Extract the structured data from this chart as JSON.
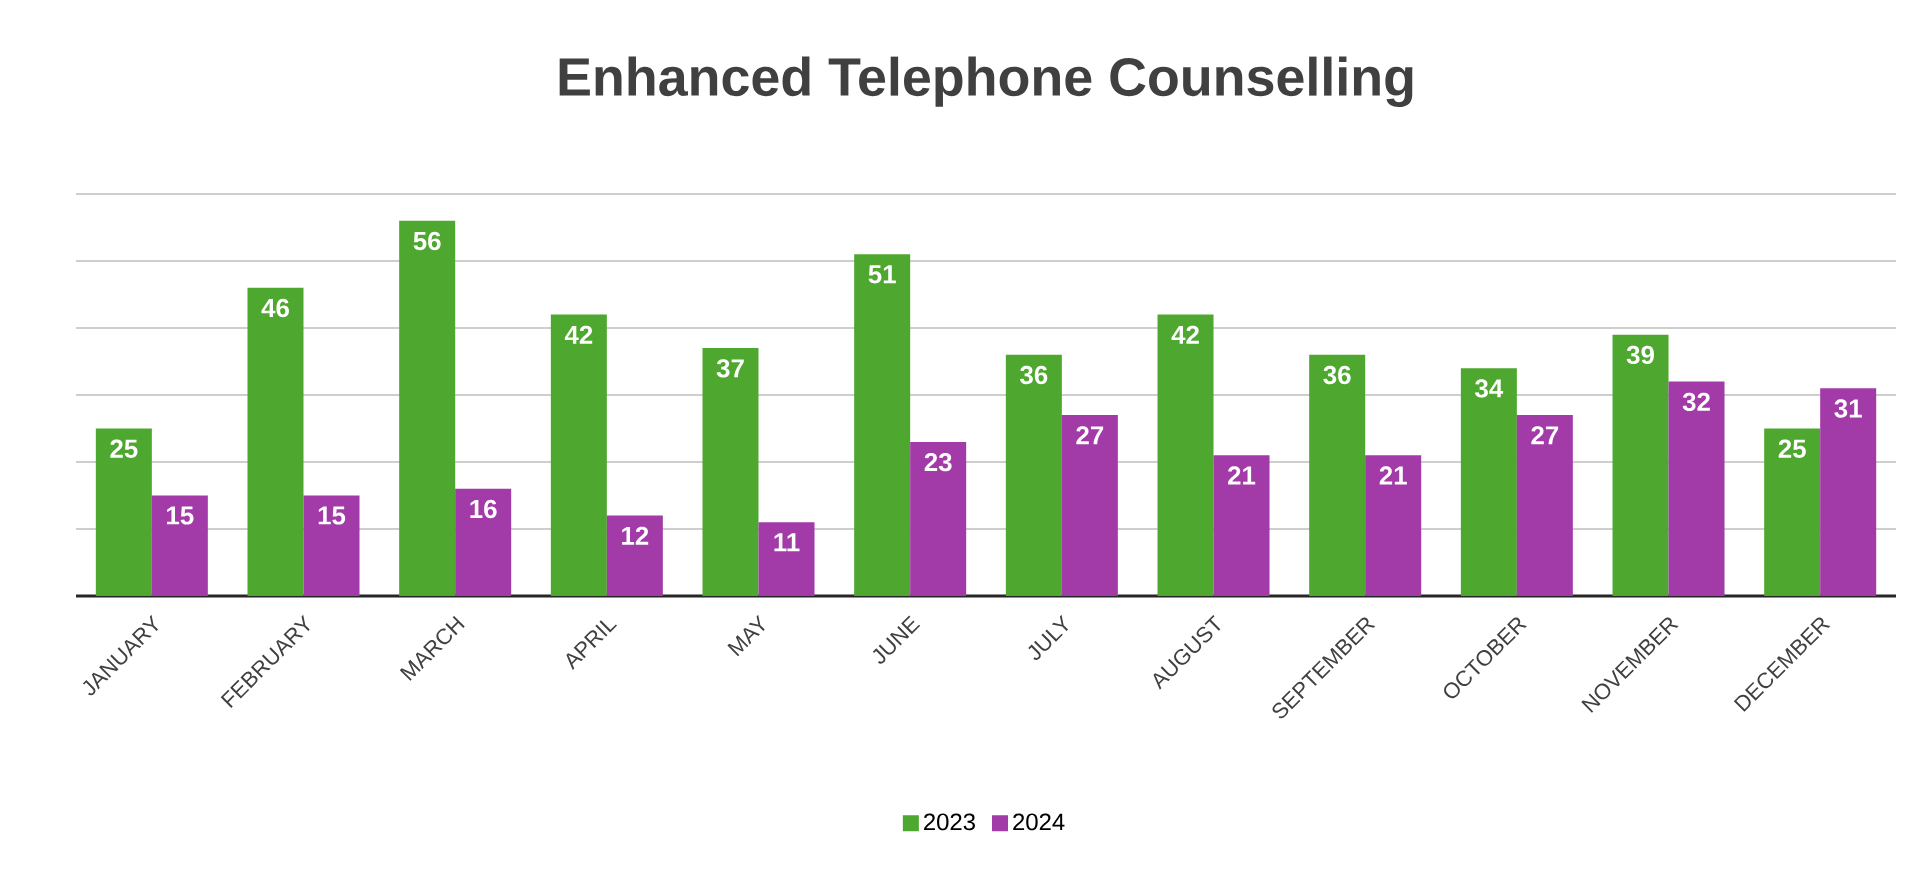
{
  "chart_data": {
    "type": "bar",
    "title": "Enhanced Telephone Counselling",
    "categories": [
      "JANUARY",
      "FEBRUARY",
      "MARCH",
      "APRIL",
      "MAY",
      "JUNE",
      "JULY",
      "AUGUST",
      "SEPTEMBER",
      "OCTOBER",
      "NOVEMBER",
      "DECEMBER"
    ],
    "series": [
      {
        "name": "2023",
        "color": "#4ea72e",
        "values": [
          25,
          46,
          56,
          42,
          37,
          51,
          36,
          42,
          36,
          34,
          39,
          25
        ]
      },
      {
        "name": "2024",
        "color": "#a23ba8",
        "values": [
          15,
          15,
          16,
          12,
          11,
          23,
          27,
          21,
          21,
          27,
          32,
          31
        ]
      }
    ],
    "ylim": [
      0,
      60
    ],
    "yticks": [
      {
        "value": 10,
        "label": null
      },
      {
        "value": 20,
        "label": null
      },
      {
        "value": 30,
        "label": null
      },
      {
        "value": 40,
        "label": null
      },
      {
        "value": 50,
        "label": null
      },
      {
        "value": 60,
        "label": null
      }
    ],
    "grid": "y",
    "tick_labels": "x",
    "data_labels": true,
    "legend": "bottom"
  }
}
